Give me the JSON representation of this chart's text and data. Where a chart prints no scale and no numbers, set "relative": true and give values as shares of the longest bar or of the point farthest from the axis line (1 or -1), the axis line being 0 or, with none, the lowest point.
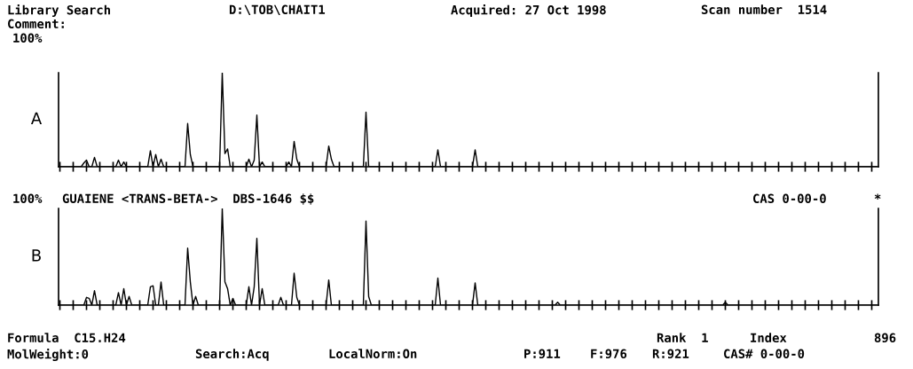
{
  "chart_data": [
    {
      "type": "line",
      "relative": true,
      "title": "Library Search",
      "ylabel": "A",
      "color": "#000000",
      "annotations": [
        "D:\\TOB\\CHAIT1",
        "Acquired: 27 Oct 1998",
        "Scan number  1514",
        "Comment:",
        "100%"
      ],
      "categories": [
        null,
        null,
        null,
        null,
        null,
        null,
        null,
        null,
        null,
        null,
        null,
        null,
        null,
        null,
        null,
        null,
        null,
        null,
        null,
        null,
        null,
        null,
        null,
        null,
        null,
        null,
        null,
        null,
        null,
        null,
        null,
        null,
        null,
        null,
        null,
        null,
        null,
        null,
        null,
        null,
        null,
        null,
        null,
        null,
        null,
        null,
        null,
        null,
        null,
        null,
        null,
        null,
        null,
        null,
        null,
        null,
        null,
        null,
        null,
        null,
        null,
        null,
        null,
        null,
        null,
        null,
        null,
        null,
        null,
        null,
        null,
        null,
        null,
        null,
        null,
        null,
        null,
        null,
        null,
        null,
        null,
        null,
        null,
        null,
        null,
        null,
        null,
        null,
        null,
        null,
        null,
        null,
        null,
        null,
        null,
        null,
        null,
        null,
        null,
        null,
        null,
        null,
        null,
        null,
        null,
        null,
        null,
        null,
        null,
        null,
        null,
        null,
        null,
        null,
        null,
        null,
        null,
        null,
        null,
        null,
        null,
        null,
        null,
        null,
        null,
        null,
        null,
        null,
        null,
        null,
        null,
        null,
        null,
        null,
        null,
        null,
        null,
        null,
        null,
        null,
        null,
        null,
        null,
        null,
        null,
        null,
        null,
        null,
        null,
        null,
        null,
        null,
        null,
        null,
        null,
        null,
        null,
        null,
        null,
        null,
        null,
        null,
        null,
        null,
        null,
        null,
        null,
        null,
        null,
        null,
        null,
        null,
        null,
        null,
        null,
        null,
        null,
        null,
        null,
        null,
        null,
        null,
        null,
        null,
        null,
        null,
        null,
        null,
        null,
        null,
        null,
        null,
        null,
        null,
        null,
        null,
        null,
        null,
        null,
        null,
        null,
        null,
        null,
        null,
        null,
        null,
        null,
        null,
        null,
        null,
        null,
        null,
        null,
        null,
        null,
        null,
        null,
        null,
        null,
        null,
        null,
        null,
        null,
        null,
        null,
        null,
        null,
        null,
        null,
        null,
        null,
        null,
        null,
        null,
        null,
        null,
        null,
        null,
        null,
        null,
        null,
        null,
        null,
        null,
        null,
        null,
        null,
        null,
        null,
        null,
        null,
        null,
        null,
        null,
        null,
        null,
        null,
        null,
        null,
        null,
        null,
        null,
        null,
        null,
        null,
        null,
        null,
        null,
        null,
        null,
        null,
        null,
        null,
        null,
        null,
        null,
        null,
        null,
        null,
        null,
        null,
        null,
        null,
        null,
        null,
        null,
        null,
        null,
        null,
        null,
        null,
        null,
        null,
        null,
        null,
        null,
        null,
        null,
        null,
        null,
        null,
        null,
        null,
        null,
        null,
        null,
        null,
        null
      ],
      "values": [
        0,
        0,
        0,
        0,
        0,
        0,
        0,
        0,
        0,
        0.04,
        0.07,
        0,
        0,
        0.1,
        0,
        0,
        0,
        0,
        0,
        0,
        0,
        0,
        0.07,
        0,
        0.05,
        0,
        0,
        0,
        0,
        0,
        0,
        0,
        0,
        0,
        0.17,
        0,
        0.13,
        0,
        0.08,
        0,
        0,
        0,
        0,
        0,
        0,
        0,
        0,
        0,
        0.46,
        0.13,
        0,
        0,
        0,
        0,
        0,
        0,
        0,
        0,
        0,
        0,
        0,
        1,
        0.14,
        0.19,
        0,
        0,
        0,
        0,
        0,
        0,
        0,
        0.08,
        0,
        0.07,
        0.55,
        0,
        0.05,
        0,
        0,
        0,
        0,
        0,
        0,
        0,
        0,
        0,
        0.05,
        0,
        0.27,
        0.08,
        0,
        0,
        0,
        0,
        0,
        0,
        0,
        0,
        0,
        0,
        0,
        0.22,
        0.08,
        0,
        0,
        0,
        0,
        0,
        0,
        0,
        0,
        0,
        0,
        0,
        0,
        0.58,
        0,
        0,
        0,
        0,
        0,
        0,
        0,
        0,
        0,
        0,
        0,
        0,
        0,
        0,
        0,
        0,
        0,
        0,
        0,
        0,
        0,
        0,
        0,
        0,
        0,
        0,
        0.18,
        0,
        0,
        0,
        0,
        0,
        0,
        0,
        0,
        0,
        0,
        0,
        0,
        0,
        0.18,
        0,
        0,
        0,
        0,
        0,
        0,
        0,
        0,
        0,
        0,
        0,
        0,
        0,
        0,
        0,
        0,
        0,
        0,
        0,
        0,
        0,
        0,
        0,
        0,
        0,
        0,
        0,
        0,
        0,
        0,
        0,
        0,
        0,
        0,
        0,
        0,
        0,
        0,
        0,
        0,
        0,
        0,
        0,
        0,
        0,
        0,
        0,
        0,
        0,
        0,
        0,
        0,
        0,
        0,
        0,
        0,
        0,
        0,
        0,
        0,
        0,
        0,
        0,
        0,
        0,
        0,
        0,
        0,
        0,
        0,
        0,
        0,
        0,
        0,
        0,
        0,
        0,
        0,
        0,
        0,
        0,
        0,
        0,
        0,
        0,
        0,
        0,
        0,
        0,
        0,
        0,
        0,
        0,
        0,
        0,
        0,
        0,
        0,
        0,
        0,
        0,
        0,
        0,
        0,
        0,
        0,
        0,
        0,
        0,
        0,
        0,
        0,
        0,
        0,
        0,
        0,
        0,
        0,
        0,
        0,
        0,
        0,
        0,
        0,
        0,
        0,
        0,
        0,
        0,
        0,
        0,
        0,
        0,
        0,
        0,
        0,
        0,
        0,
        0,
        0,
        0,
        0,
        0,
        0,
        0,
        0,
        0,
        0,
        0,
        0,
        0
      ]
    },
    {
      "type": "line",
      "relative": true,
      "ylabel": "B",
      "color": "#000000",
      "annotations": [
        "100%",
        "GUAIENE <TRANS-BETA->  DBS-1646 $$",
        "CAS 0-00-0",
        "*",
        "Formula  C15.H24",
        "Rank  1",
        "Index",
        "896",
        "MolWeight:0",
        "Search:Acq",
        "LocalNorm:On",
        "P:911",
        "F:976",
        "R:921",
        "CAS# 0-00-0"
      ],
      "categories": [
        null,
        null,
        null,
        null,
        null,
        null,
        null,
        null,
        null,
        null,
        null,
        null,
        null,
        null,
        null,
        null,
        null,
        null,
        null,
        null,
        null,
        null,
        null,
        null,
        null,
        null,
        null,
        null,
        null,
        null,
        null,
        null,
        null,
        null,
        null,
        null,
        null,
        null,
        null,
        null,
        null,
        null,
        null,
        null,
        null,
        null,
        null,
        null,
        null,
        null,
        null,
        null,
        null,
        null,
        null,
        null,
        null,
        null,
        null,
        null,
        null,
        null,
        null,
        null,
        null,
        null,
        null,
        null,
        null,
        null,
        null,
        null,
        null,
        null,
        null,
        null,
        null,
        null,
        null,
        null,
        null,
        null,
        null,
        null,
        null,
        null,
        null,
        null,
        null,
        null,
        null,
        null,
        null,
        null,
        null,
        null,
        null,
        null,
        null,
        null,
        null,
        null,
        null,
        null,
        null,
        null,
        null,
        null,
        null,
        null,
        null,
        null,
        null,
        null,
        null,
        null,
        null,
        null,
        null,
        null,
        null,
        null,
        null,
        null,
        null,
        null,
        null,
        null,
        null,
        null,
        null,
        null,
        null,
        null,
        null,
        null,
        null,
        null,
        null,
        null,
        null,
        null,
        null,
        null,
        null,
        null,
        null,
        null,
        null,
        null,
        null,
        null,
        null,
        null,
        null,
        null,
        null,
        null,
        null,
        null,
        null,
        null,
        null,
        null,
        null,
        null,
        null,
        null,
        null,
        null,
        null,
        null,
        null,
        null,
        null,
        null,
        null,
        null,
        null,
        null,
        null,
        null,
        null,
        null,
        null,
        null,
        null,
        null,
        null,
        null,
        null,
        null,
        null,
        null,
        null,
        null,
        null,
        null,
        null,
        null,
        null,
        null,
        null,
        null,
        null,
        null,
        null,
        null,
        null,
        null,
        null,
        null,
        null,
        null,
        null,
        null,
        null,
        null,
        null,
        null,
        null,
        null,
        null,
        null,
        null,
        null,
        null,
        null,
        null,
        null,
        null,
        null,
        null,
        null,
        null,
        null,
        null,
        null,
        null,
        null,
        null,
        null,
        null,
        null,
        null,
        null,
        null,
        null,
        null,
        null,
        null,
        null,
        null,
        null,
        null,
        null,
        null,
        null,
        null,
        null,
        null,
        null,
        null,
        null,
        null,
        null,
        null,
        null,
        null,
        null,
        null,
        null,
        null,
        null,
        null,
        null,
        null,
        null,
        null,
        null,
        null,
        null,
        null,
        null,
        null,
        null,
        null,
        null,
        null,
        null,
        null,
        null,
        null,
        null,
        null,
        null,
        null,
        null,
        null,
        null,
        null,
        null,
        null,
        null,
        null,
        null,
        null,
        null
      ],
      "values": [
        0,
        0,
        0,
        0,
        0,
        0,
        0,
        0,
        0,
        0,
        0.08,
        0.07,
        0,
        0.15,
        0,
        0,
        0,
        0,
        0,
        0,
        0,
        0,
        0.13,
        0,
        0.17,
        0,
        0.09,
        0,
        0,
        0,
        0,
        0,
        0,
        0,
        0.19,
        0.2,
        0,
        0,
        0.24,
        0,
        0,
        0,
        0,
        0,
        0,
        0,
        0,
        0,
        0.59,
        0.24,
        0,
        0.09,
        0,
        0,
        0,
        0,
        0,
        0,
        0,
        0,
        0,
        1,
        0.24,
        0.17,
        0,
        0.07,
        0,
        0,
        0,
        0,
        0,
        0.19,
        0,
        0.19,
        0.69,
        0,
        0.17,
        0,
        0,
        0,
        0,
        0,
        0,
        0.08,
        0,
        0,
        0,
        0,
        0.33,
        0.08,
        0,
        0,
        0,
        0,
        0,
        0,
        0,
        0,
        0,
        0,
        0,
        0.26,
        0,
        0,
        0,
        0,
        0,
        0,
        0,
        0,
        0,
        0,
        0,
        0,
        0,
        0.87,
        0.09,
        0,
        0,
        0,
        0,
        0,
        0,
        0,
        0,
        0,
        0,
        0,
        0,
        0,
        0,
        0,
        0,
        0,
        0,
        0,
        0,
        0,
        0,
        0,
        0,
        0,
        0.28,
        0,
        0,
        0,
        0,
        0,
        0,
        0,
        0,
        0,
        0,
        0,
        0,
        0,
        0.23,
        0,
        0,
        0,
        0,
        0,
        0,
        0,
        0,
        0,
        0,
        0,
        0,
        0,
        0,
        0,
        0,
        0,
        0,
        0,
        0,
        0,
        0,
        0,
        0,
        0,
        0,
        0,
        0,
        0,
        0,
        0.03,
        0,
        0,
        0,
        0,
        0,
        0,
        0,
        0,
        0,
        0,
        0,
        0,
        0,
        0,
        0,
        0,
        0,
        0,
        0,
        0,
        0,
        0,
        0,
        0,
        0,
        0,
        0,
        0,
        0,
        0,
        0,
        0,
        0,
        0,
        0,
        0,
        0,
        0,
        0,
        0,
        0,
        0,
        0,
        0,
        0,
        0,
        0,
        0,
        0,
        0,
        0,
        0,
        0,
        0,
        0,
        0,
        0,
        0,
        0,
        0,
        0,
        0,
        0.03,
        0,
        0,
        0,
        0,
        0,
        0,
        0,
        0,
        0,
        0,
        0,
        0,
        0,
        0,
        0,
        0,
        0,
        0,
        0,
        0,
        0,
        0,
        0,
        0,
        0,
        0,
        0,
        0,
        0,
        0,
        0,
        0,
        0,
        0,
        0,
        0,
        0,
        0,
        0,
        0,
        0,
        0,
        0,
        0,
        0,
        0,
        0,
        0,
        0,
        0,
        0,
        0,
        0,
        0,
        0,
        0,
        0
      ]
    }
  ]
}
